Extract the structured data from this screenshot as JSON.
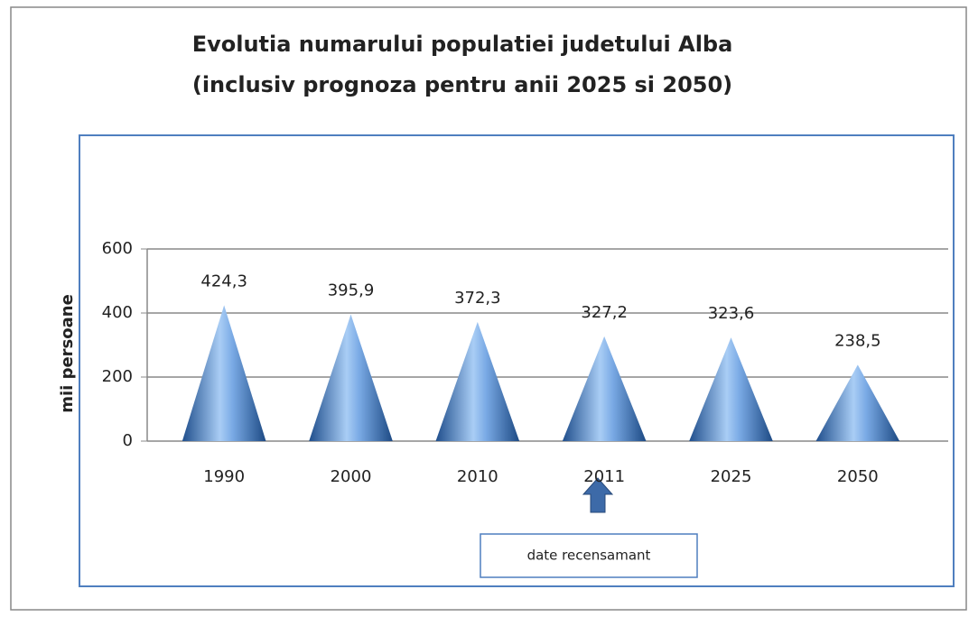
{
  "chart_data": {
    "type": "cone",
    "title": [
      "Evolutia numarului populatiei judetului Alba",
      "(inclusiv prognoza pentru anii 2025 si 2050)"
    ],
    "y_label": "mii persoane",
    "categories": [
      "1990",
      "2000",
      "2010",
      "2011",
      "2025",
      "2050"
    ],
    "values": [
      424.3,
      395.9,
      372.3,
      327.2,
      323.6,
      238.5
    ],
    "value_labels": [
      "424,3",
      "395,9",
      "372,3",
      "327,2",
      "323,6",
      "238,5"
    ],
    "color": "#4a7fc4",
    "ylim": [
      0,
      600
    ],
    "yticks": [
      0,
      200,
      400,
      600
    ],
    "grid": true,
    "annotation": "date recensamant"
  }
}
